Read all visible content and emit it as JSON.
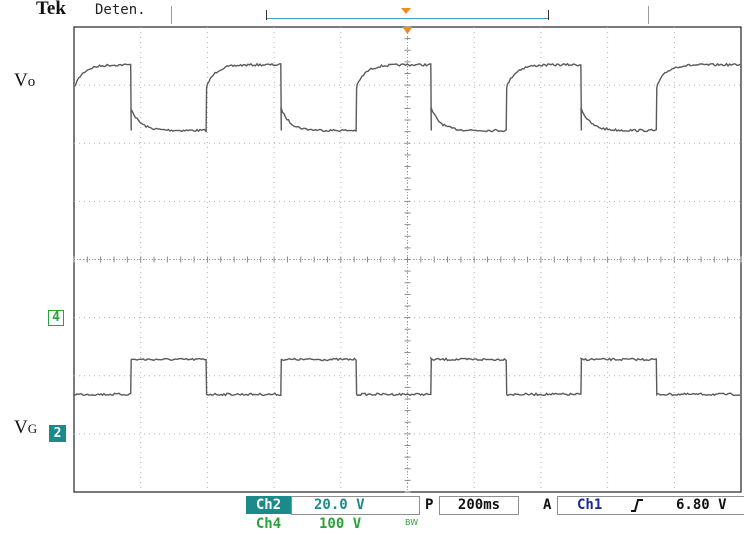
{
  "header": {
    "brand": "Tek",
    "state": "Deten."
  },
  "traces": {
    "output_label_main": "V",
    "output_label_sub": "o",
    "gate_label_main": "V",
    "gate_label_sub": "G",
    "ch4_marker": "4",
    "ch2_marker": "2"
  },
  "readout": {
    "ch2_name": "Ch2",
    "ch2_scale": "20.0 V",
    "ch4_name": "Ch4",
    "ch4_scale": "100 V",
    "bw_limit": "BW",
    "timebase_prefix": "P",
    "timebase": "200ms",
    "trigger_mode": "A",
    "trigger_source": "Ch1",
    "trigger_slope_icon": "rising-edge-icon",
    "trigger_level": "6.80 V"
  },
  "chart_data": {
    "type": "line",
    "title": "",
    "xlabel": "",
    "ylabel": "",
    "grid": true,
    "x_divisions": 10,
    "y_divisions": 8,
    "time_per_division": "200ms",
    "x_range_div": [
      0,
      10
    ],
    "y_range_div": [
      -4,
      4
    ],
    "colors": {
      "trace": "#5a5a5a",
      "grid": "#b4b4b4",
      "ch2": "#1a8a8a",
      "ch4": "#27a33a",
      "trigger": "#f28a1c",
      "ch1_text": "#1c2a8c"
    },
    "period_div": 2.25,
    "series": [
      {
        "name": "Vo",
        "kind": "output",
        "high_div": 3.35,
        "low_div": 2.22,
        "fall_at_div": [
          0.85,
          3.1,
          5.35,
          7.6
        ],
        "rise_at_div": [
          1.98,
          4.23,
          6.48,
          8.73
        ],
        "starts": "high"
      },
      {
        "name": "VG",
        "kind": "gate",
        "high_div": -1.72,
        "low_div": -2.32,
        "rise_at_div": [
          0.85,
          3.1,
          5.35,
          7.6
        ],
        "fall_at_div": [
          1.98,
          4.23,
          6.48,
          8.73
        ],
        "starts": "low"
      }
    ]
  }
}
